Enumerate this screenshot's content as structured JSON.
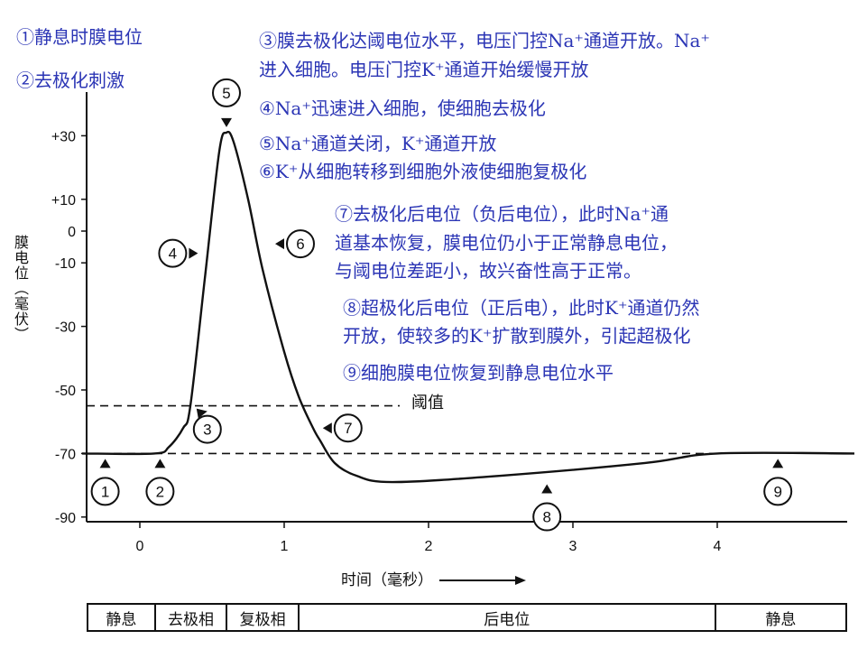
{
  "chart_data": {
    "type": "line",
    "xlabel": "时间（毫秒）",
    "ylabel": "膜电位（毫伏）",
    "xlim": [
      -0.4,
      4.95
    ],
    "ylim": [
      -95,
      42
    ],
    "x_ticks": [
      0,
      1,
      2,
      3,
      4
    ],
    "y_ticks": [
      30,
      10,
      0,
      -10,
      -30,
      -50,
      -70,
      -90
    ],
    "y_tick_labels": [
      "+30",
      "+10",
      "0",
      "-10",
      "-30",
      "-50",
      "-70",
      "-90"
    ],
    "threshold": {
      "value": -55,
      "label": "阈值"
    },
    "resting_potential": -70,
    "series": [
      {
        "x": [
          -0.4,
          0.1,
          0.2,
          0.3,
          0.35,
          0.45,
          0.55,
          0.6,
          0.65,
          0.75,
          0.85,
          1.0,
          1.1,
          1.2,
          1.25,
          1.35,
          1.5,
          1.75,
          2.5,
          3.5,
          4.0,
          4.95
        ],
        "y": [
          -70,
          -70,
          -68,
          -62,
          -55,
          -15,
          25,
          31,
          28,
          10,
          -12,
          -38,
          -52,
          -62,
          -66,
          -73,
          -77,
          -79,
          -77,
          -73,
          -70,
          -70
        ]
      }
    ],
    "markers": [
      {
        "label": "1",
        "x": -0.24,
        "y": -70
      },
      {
        "label": "2",
        "x": 0.14,
        "y": -70
      },
      {
        "label": "3",
        "x": 0.38,
        "y": -55
      },
      {
        "label": "4",
        "x": 0.44,
        "y": -7
      },
      {
        "label": "5",
        "x": 0.6,
        "y": 31
      },
      {
        "label": "6",
        "x": 0.9,
        "y": -4
      },
      {
        "label": "7",
        "x": 1.23,
        "y": -62
      },
      {
        "label": "8",
        "x": 2.82,
        "y": -78
      },
      {
        "label": "9",
        "x": 4.42,
        "y": -70
      }
    ]
  },
  "notes": [
    "①静息时膜电位",
    "②去极化刺激",
    "③膜去极化达阈电位水平，电压门控Na⁺通道开放。Na⁺",
    "进入细胞。电压门控K⁺通道开始缓慢开放",
    "④Na⁺迅速进入细胞，使细胞去极化",
    "⑤Na⁺通道关闭，K⁺通道开放",
    "⑥K⁺从细胞转移到细胞外液使细胞复极化",
    "⑦去极化后电位（负后电位），此时Na⁺通",
    "道基本恢复，膜电位仍小于正常静息电位，",
    "与阈电位差距小，故兴奋性高于正常。",
    "⑧超极化后电位（正后电），此时K⁺通道仍然",
    "开放，使较多的K⁺扩散到膜外，引起超极化",
    "⑨细胞膜电位恢复到静息电位水平"
  ],
  "phases": [
    {
      "label": "静息",
      "end": 0.1
    },
    {
      "label": "去极相",
      "end": 0.6
    },
    {
      "label": "复极相",
      "end": 1.1
    },
    {
      "label": "后电位",
      "end": 4.0
    },
    {
      "label": "静息",
      "end": 4.95
    }
  ],
  "colors": {
    "notes": "#2b35b5",
    "curve": "#111111"
  }
}
